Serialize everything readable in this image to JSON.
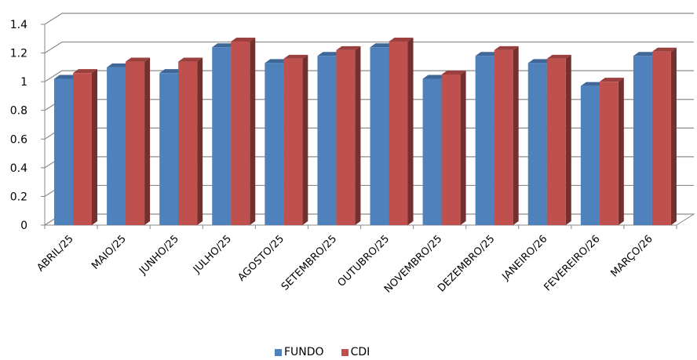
{
  "chart_data": {
    "type": "bar",
    "categories": [
      "ABRIL/25",
      "MAIO/25",
      "JUNHO/25",
      "JULHO/25",
      "AGOSTO/25",
      "SETEMBRO/25",
      "OUTUBRO/25",
      "NOVEMBRO/25",
      "DEZEMBRO/25",
      "JANEIRO/26",
      "FEVEREIRO/26",
      "MARÇO/26"
    ],
    "series": [
      {
        "name": "FUNDO",
        "values": [
          1.02,
          1.1,
          1.06,
          1.24,
          1.13,
          1.18,
          1.24,
          1.02,
          1.18,
          1.13,
          0.97,
          1.18
        ],
        "color": "#4F81BD"
      },
      {
        "name": "CDI",
        "values": [
          1.06,
          1.14,
          1.14,
          1.28,
          1.16,
          1.22,
          1.28,
          1.05,
          1.22,
          1.16,
          1.0,
          1.21
        ],
        "color": "#C0504D"
      }
    ],
    "ylim": [
      0,
      1.4
    ],
    "yticks": [
      "0",
      "0.2",
      "0.4",
      "0.6",
      "0.8",
      "1",
      "1.2",
      "1.4"
    ],
    "grid": true,
    "legend_position": "bottom",
    "style": "3d-clustered-column"
  }
}
